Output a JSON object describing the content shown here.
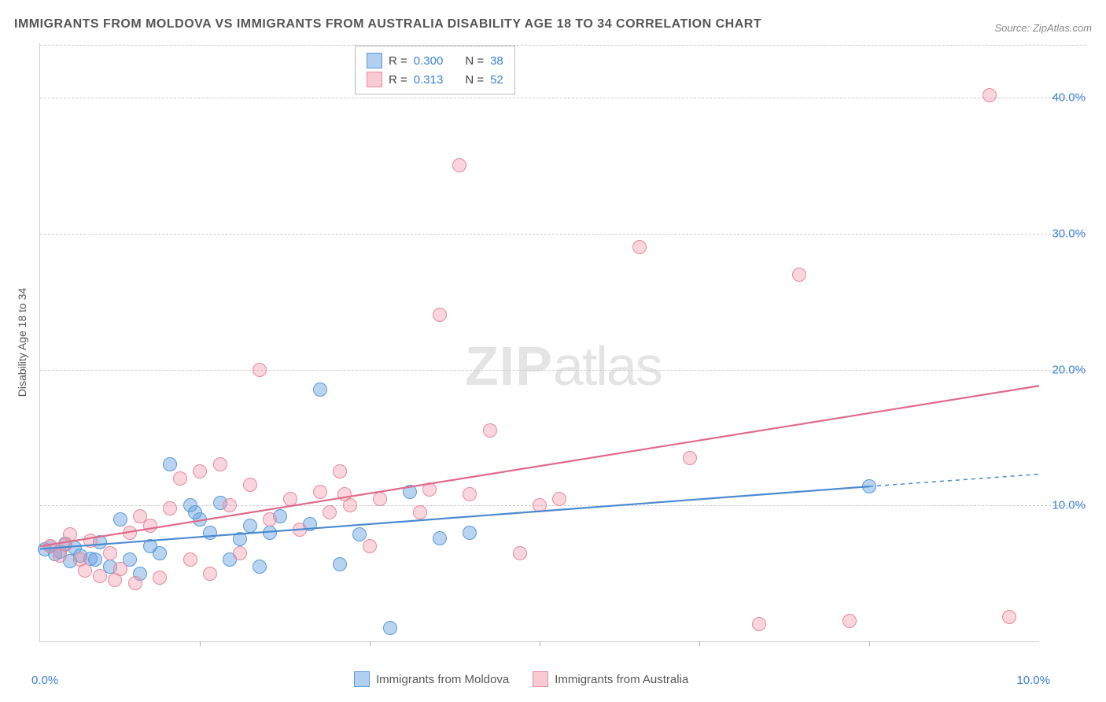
{
  "title": "IMMIGRANTS FROM MOLDOVA VS IMMIGRANTS FROM AUSTRALIA DISABILITY AGE 18 TO 34 CORRELATION CHART",
  "source_label": "Source: ZipAtlas.com",
  "y_axis_label": "Disability Age 18 to 34",
  "watermark_zip": "ZIP",
  "watermark_atlas": "atlas",
  "chart": {
    "type": "scatter",
    "xlim": [
      0,
      10
    ],
    "ylim": [
      0,
      44
    ],
    "x_ticks": [
      0,
      10
    ],
    "x_tick_labels": [
      "0.0%",
      "10.0%"
    ],
    "y_ticks": [
      10,
      20,
      30,
      40
    ],
    "y_tick_labels": [
      "10.0%",
      "20.0%",
      "30.0%",
      "40.0%"
    ],
    "xtick_minor_positions": [
      1.6,
      3.3,
      5.0,
      6.6,
      8.3
    ],
    "background_color": "#ffffff",
    "grid_style": "dashed",
    "grid_color": "#cccccc",
    "axis_color": "#cccccc",
    "watermark_opacity": 0.1,
    "series": [
      {
        "name": "Immigrants from Moldova",
        "color_fill": "rgba(100,160,225,0.45)",
        "color_stroke": "#5a9ad8",
        "marker_size": 16,
        "R": "0.300",
        "N": "38",
        "trend": {
          "x1": 0.0,
          "y1": 6.8,
          "x2": 8.3,
          "y2": 11.4,
          "x2_dashed": 10.0,
          "y2_dashed": 12.3,
          "stroke": "#4a8ad0",
          "width": 2.2
        },
        "points": [
          [
            0.05,
            6.8
          ],
          [
            0.1,
            7.0
          ],
          [
            0.15,
            6.4
          ],
          [
            0.2,
            6.6
          ],
          [
            0.25,
            7.2
          ],
          [
            0.3,
            5.9
          ],
          [
            0.35,
            6.9
          ],
          [
            0.4,
            6.3
          ],
          [
            0.5,
            6.1
          ],
          [
            0.55,
            6.0
          ],
          [
            0.6,
            7.3
          ],
          [
            0.7,
            5.5
          ],
          [
            0.8,
            9.0
          ],
          [
            0.9,
            6.0
          ],
          [
            1.0,
            5.0
          ],
          [
            1.1,
            7.0
          ],
          [
            1.2,
            6.5
          ],
          [
            1.3,
            13.0
          ],
          [
            1.5,
            10.0
          ],
          [
            1.55,
            9.5
          ],
          [
            1.6,
            9.0
          ],
          [
            1.7,
            8.0
          ],
          [
            1.8,
            10.2
          ],
          [
            1.9,
            6.0
          ],
          [
            2.0,
            7.5
          ],
          [
            2.1,
            8.5
          ],
          [
            2.2,
            5.5
          ],
          [
            2.3,
            8.0
          ],
          [
            2.4,
            9.2
          ],
          [
            2.7,
            8.6
          ],
          [
            2.8,
            18.5
          ],
          [
            3.0,
            5.7
          ],
          [
            3.2,
            7.9
          ],
          [
            3.5,
            1.0
          ],
          [
            3.7,
            11.0
          ],
          [
            4.0,
            7.6
          ],
          [
            4.3,
            8.0
          ],
          [
            8.3,
            11.4
          ]
        ]
      },
      {
        "name": "Immigrants from Australia",
        "color_fill": "rgba(240,150,170,0.40)",
        "color_stroke": "#e68aa0",
        "marker_size": 16,
        "R": "0.313",
        "N": "52",
        "trend": {
          "x1": 0.0,
          "y1": 7.0,
          "x2": 10.0,
          "y2": 18.8,
          "stroke": "#e06a8a",
          "width": 2.2
        },
        "points": [
          [
            0.1,
            7.0
          ],
          [
            0.2,
            6.3
          ],
          [
            0.25,
            7.1
          ],
          [
            0.3,
            7.9
          ],
          [
            0.4,
            6.0
          ],
          [
            0.45,
            5.2
          ],
          [
            0.5,
            7.4
          ],
          [
            0.6,
            4.8
          ],
          [
            0.7,
            6.5
          ],
          [
            0.75,
            4.5
          ],
          [
            0.8,
            5.3
          ],
          [
            0.9,
            8.0
          ],
          [
            0.95,
            4.3
          ],
          [
            1.0,
            9.2
          ],
          [
            1.1,
            8.5
          ],
          [
            1.2,
            4.7
          ],
          [
            1.3,
            9.8
          ],
          [
            1.4,
            12.0
          ],
          [
            1.5,
            6.0
          ],
          [
            1.6,
            12.5
          ],
          [
            1.7,
            5.0
          ],
          [
            1.8,
            13.0
          ],
          [
            1.9,
            10.0
          ],
          [
            2.0,
            6.5
          ],
          [
            2.1,
            11.5
          ],
          [
            2.2,
            20.0
          ],
          [
            2.3,
            9.0
          ],
          [
            2.5,
            10.5
          ],
          [
            2.6,
            8.2
          ],
          [
            2.8,
            11.0
          ],
          [
            2.9,
            9.5
          ],
          [
            3.0,
            12.5
          ],
          [
            3.05,
            10.8
          ],
          [
            3.1,
            10.0
          ],
          [
            3.3,
            7.0
          ],
          [
            3.4,
            10.5
          ],
          [
            3.8,
            9.5
          ],
          [
            3.9,
            11.2
          ],
          [
            4.0,
            24.0
          ],
          [
            4.3,
            10.8
          ],
          [
            4.2,
            35.0
          ],
          [
            4.5,
            15.5
          ],
          [
            4.8,
            6.5
          ],
          [
            5.0,
            10.0
          ],
          [
            5.2,
            10.5
          ],
          [
            6.0,
            29.0
          ],
          [
            6.5,
            13.5
          ],
          [
            7.2,
            1.3
          ],
          [
            7.6,
            27.0
          ],
          [
            8.1,
            1.5
          ],
          [
            9.5,
            40.2
          ],
          [
            9.7,
            1.8
          ]
        ]
      }
    ]
  },
  "legend_top": {
    "rows": [
      {
        "swatch": "blue",
        "label_r": "R =",
        "val_r": "0.300",
        "label_n": "N =",
        "val_n": "38"
      },
      {
        "swatch": "pink",
        "label_r": "R =",
        "val_r": "0.313",
        "label_n": "N =",
        "val_n": "52"
      }
    ]
  },
  "legend_bottom": {
    "items": [
      {
        "swatch": "blue",
        "label": "Immigrants from Moldova"
      },
      {
        "swatch": "pink",
        "label": "Immigrants from Australia"
      }
    ]
  }
}
